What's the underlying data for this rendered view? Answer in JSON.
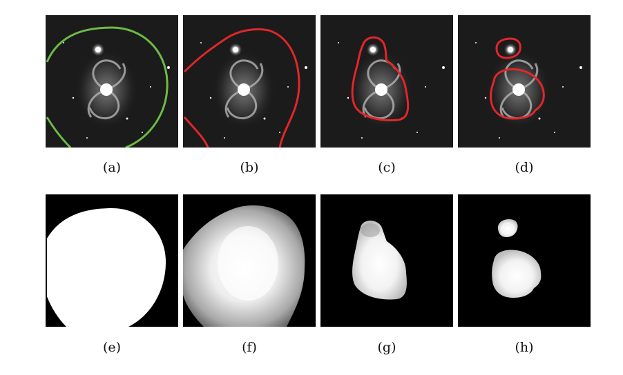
{
  "figure": {
    "panels": [
      {
        "label": "(a)"
      },
      {
        "label": "(b)"
      },
      {
        "label": "(c)"
      },
      {
        "label": "(d)"
      },
      {
        "label": "(e)"
      },
      {
        "label": "(f)"
      },
      {
        "label": "(g)"
      },
      {
        "label": "(h)"
      }
    ],
    "colors": {
      "initial_contour": "#6dbb45",
      "evolved_contour": "#e2262a",
      "background": "#111111",
      "mask": "#ffffff"
    }
  }
}
